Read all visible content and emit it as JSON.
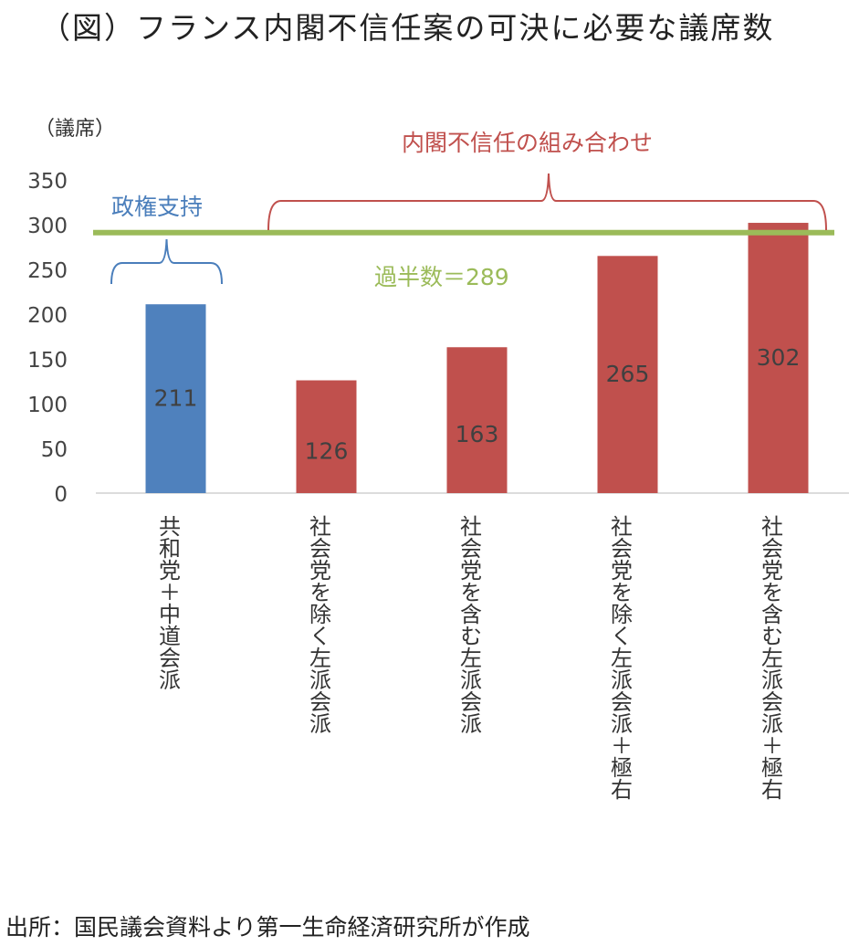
{
  "title": "（図）フランス内閣不信任案の可決に必要な議席数",
  "source": "出所：国民議会資料より第一生命経済研究所が作成",
  "chart_data": {
    "type": "bar",
    "ylabel": "（議席）",
    "ylim": [
      0,
      350
    ],
    "yticks": [
      0,
      50,
      100,
      150,
      200,
      250,
      300,
      350
    ],
    "categories": [
      "共和党＋中道会派",
      "社会党を除く左派会派",
      "社会党を含む左派会派",
      "社会党を除く左派会派＋極右",
      "社会党を含む左派会派＋極右"
    ],
    "values": [
      211,
      126,
      163,
      265,
      302
    ],
    "bar_colors": [
      "#4f81bd",
      "#c0504d",
      "#c0504d",
      "#c0504d",
      "#c0504d"
    ],
    "data_labels": [
      "211",
      "126",
      "163",
      "265",
      "302"
    ],
    "reference_line": {
      "value": 289,
      "label": "過半数＝289",
      "color": "#9bbb59"
    },
    "annotations": {
      "government": {
        "label": "政権支持",
        "color": "#4a7ebb"
      },
      "no_confidence": {
        "label": "内閣不信任の組み合わせ",
        "color": "#c0504d"
      }
    },
    "grid": false,
    "legend": "none"
  }
}
